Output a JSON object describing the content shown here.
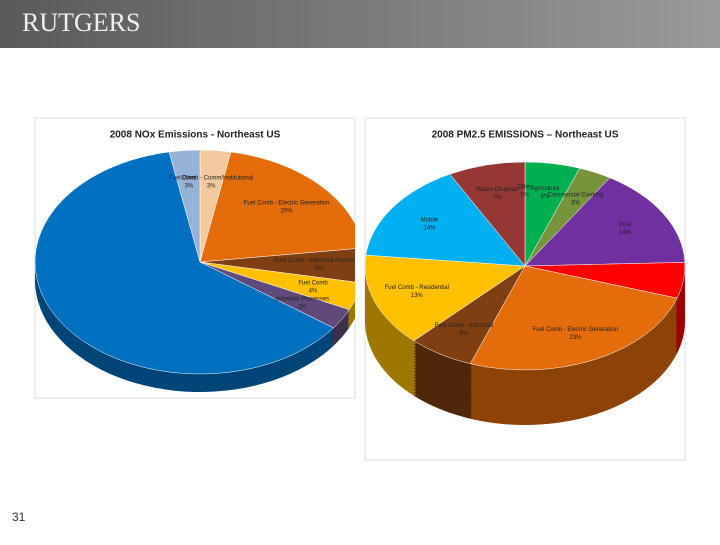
{
  "header": {
    "logo": "RUTGERS"
  },
  "page_number": "31",
  "chart_data": [
    {
      "type": "pie",
      "title": "2008 NOx Emissions - Northeast US",
      "categories": [
        "Fuel Comb - Comm/Institutional",
        "Fuel Comb - Electric Generation",
        "Fuel Comb - Industrial Processes",
        "Fuel Comb",
        "Industrial Processes",
        null,
        "Other"
      ],
      "values": [
        3,
        20,
        5,
        4,
        3,
        62,
        3
      ],
      "value_labels": [
        "3%",
        "20%",
        "5%",
        "4%",
        "3%",
        null,
        "3%"
      ],
      "colors": [
        "#f5c9a0",
        "#e46c0a",
        "#7f3f12",
        "#ffc000",
        "#604a7b",
        "#0070c0",
        "#95b3d7"
      ]
    },
    {
      "type": "pie",
      "title": "2008 PM2.5 EMISSIONS – Northeast US",
      "categories": [
        "Other",
        "Agriculture",
        "Commercial Cooking",
        "Dust",
        null,
        "Fuel Comb - Electric Generation",
        "Fuel Comb - Industrial",
        "Fuel Comb - Residential",
        "Mobile",
        "Waste Disposal"
      ],
      "values": [
        0,
        5,
        3,
        14,
        5,
        23,
        6,
        13,
        14,
        7
      ],
      "value_labels": [
        "0%",
        "5%",
        "3%",
        "14%",
        "5%",
        "23%",
        "6%",
        "13%",
        "14%",
        "7%"
      ],
      "colors": [
        "#7f7f7f",
        "#00b050",
        "#77933c",
        "#7030a0",
        "#ff0000",
        "#e46c0a",
        "#7f3f12",
        "#ffc000",
        "#00b0f0",
        "#953735"
      ]
    }
  ]
}
